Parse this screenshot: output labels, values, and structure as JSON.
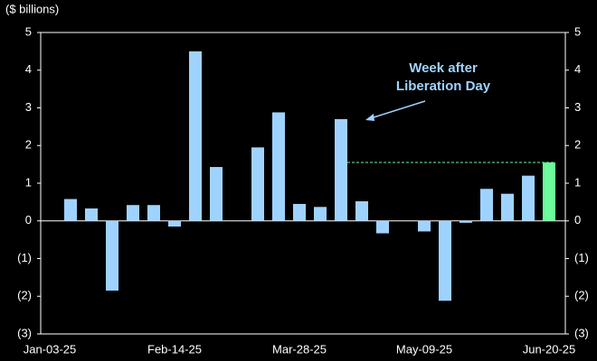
{
  "chart_data": {
    "type": "bar",
    "y_label": "($ billions)",
    "categories": [
      "Jan-03-25",
      null,
      null,
      null,
      null,
      null,
      "Feb-14-25",
      null,
      null,
      null,
      null,
      null,
      "Mar-28-25",
      null,
      null,
      null,
      null,
      null,
      "May-09-25",
      null,
      null,
      null,
      null,
      null,
      "Jun-20-25"
    ],
    "values": [
      null,
      0.58,
      0.33,
      -1.85,
      0.42,
      0.42,
      -0.15,
      4.5,
      1.43,
      null,
      1.95,
      2.88,
      0.45,
      0.37,
      2.7,
      0.52,
      -0.33,
      null,
      -0.28,
      -2.12,
      -0.05,
      0.85,
      0.72,
      1.2,
      1.55
    ],
    "colors": [
      "#9fd3ff",
      "#9fd3ff",
      "#9fd3ff",
      "#9fd3ff",
      "#9fd3ff",
      "#9fd3ff",
      "#9fd3ff",
      "#9fd3ff",
      "#9fd3ff",
      "#9fd3ff",
      "#9fd3ff",
      "#9fd3ff",
      "#9fd3ff",
      "#9fd3ff",
      "#9fd3ff",
      "#9fd3ff",
      "#9fd3ff",
      "#9fd3ff",
      "#9fd3ff",
      "#9fd3ff",
      "#9fd3ff",
      "#9fd3ff",
      "#9fd3ff",
      "#9fd3ff",
      "#6dfa9a"
    ],
    "ylim": [
      -3,
      5
    ],
    "yticks": [
      {
        "value": -3,
        "label": "(3)"
      },
      {
        "value": -2,
        "label": "(2)"
      },
      {
        "value": -1,
        "label": "(1)"
      },
      0,
      1,
      2,
      3,
      4,
      5
    ],
    "annotation": [
      "Week after",
      "Liberation Day"
    ],
    "annotation_color": "#9fd3ff"
  }
}
